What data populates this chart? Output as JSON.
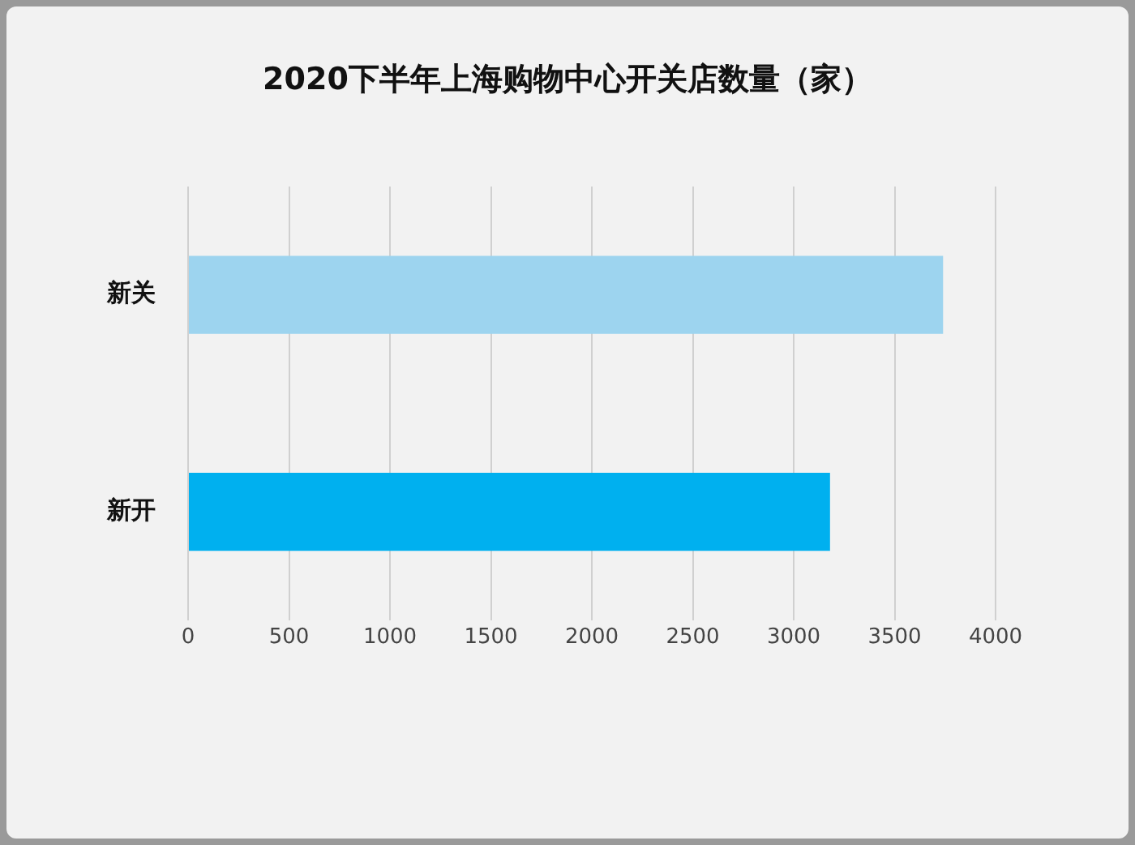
{
  "chart_data": {
    "type": "bar",
    "orientation": "horizontal",
    "title": "2020下半年上海购物中心开关店数量（家）",
    "categories": [
      "新关",
      "新开"
    ],
    "values": [
      3740,
      3180
    ],
    "colors": [
      "#9dd4ef",
      "#00b0ef"
    ],
    "xlim": [
      0,
      4000
    ],
    "xticks": [
      0,
      500,
      1000,
      1500,
      2000,
      2500,
      3000,
      3500,
      4000
    ],
    "grid": "x",
    "legend": false
  }
}
